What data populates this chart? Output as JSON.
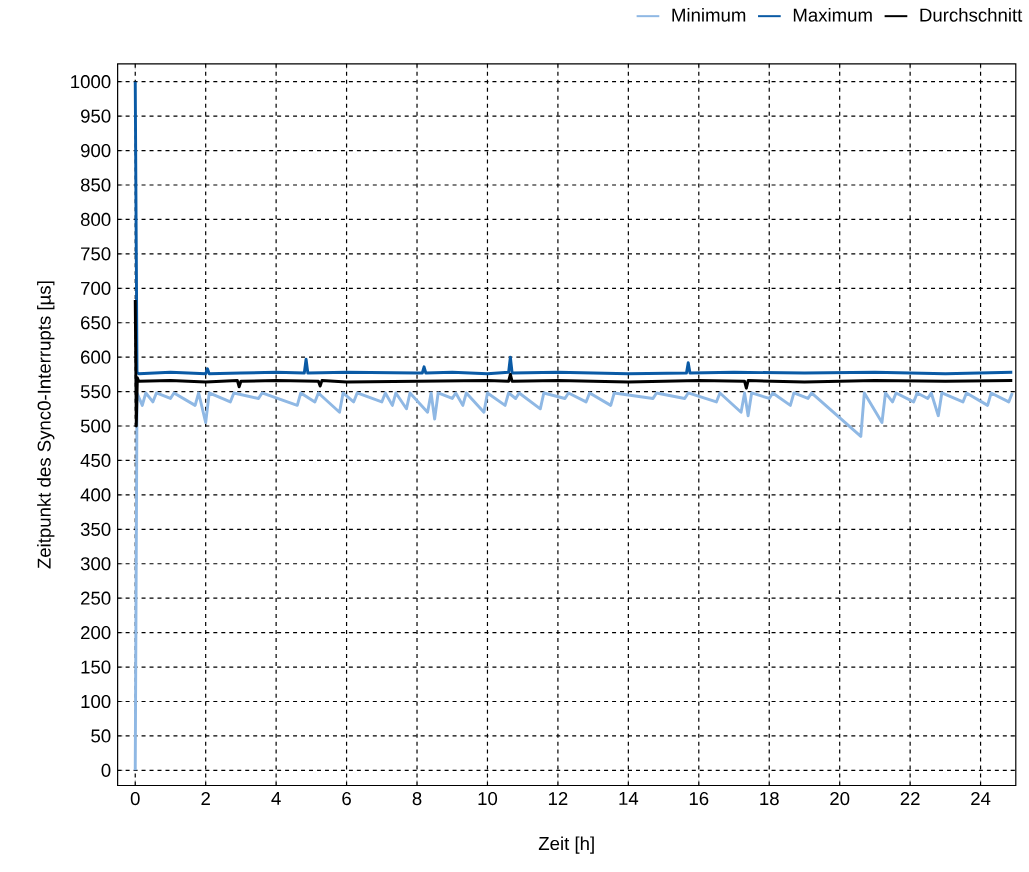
{
  "chart_data": {
    "type": "line",
    "xlabel": "Zeit [h]",
    "ylabel": "Zeitpunkt des Sync0-Interrupts [µs]",
    "xlim": [
      -0.5,
      25
    ],
    "ylim": [
      -22,
      1026
    ],
    "xticks": [
      0,
      2,
      4,
      6,
      8,
      10,
      12,
      14,
      16,
      18,
      20,
      22,
      24
    ],
    "yticks": [
      0,
      50,
      100,
      150,
      200,
      250,
      300,
      350,
      400,
      450,
      500,
      550,
      600,
      650,
      700,
      750,
      800,
      850,
      900,
      950,
      1000
    ],
    "grid": true,
    "legend": "top right",
    "series": [
      {
        "name": "Minimum",
        "color": "#8fb8e4",
        "x": [
          0,
          0.05,
          0.2,
          0.3,
          0.5,
          0.6,
          1.0,
          1.1,
          1.7,
          1.8,
          2.0,
          2.1,
          2.7,
          2.8,
          3.5,
          3.6,
          4.6,
          4.7,
          5.1,
          5.2,
          5.8,
          5.9,
          6.2,
          6.3,
          7.0,
          7.1,
          7.3,
          7.4,
          7.7,
          7.8,
          8.3,
          8.4,
          8.5,
          8.6,
          9.0,
          9.1,
          9.3,
          9.4,
          9.9,
          10.0,
          10.5,
          10.6,
          10.8,
          10.9,
          11.5,
          11.6,
          12.2,
          12.3,
          12.8,
          12.9,
          13.5,
          13.6,
          14.7,
          14.8,
          15.6,
          15.7,
          16.5,
          16.6,
          17.2,
          17.3,
          17.4,
          17.5,
          18.0,
          18.1,
          18.6,
          18.7,
          19.1,
          19.2,
          20.6,
          20.7,
          21.2,
          21.3,
          21.5,
          21.6,
          22.1,
          22.2,
          22.5,
          22.6,
          22.8,
          22.9,
          23.5,
          23.6,
          24.2,
          24.3,
          24.8,
          24.9
        ],
        "values": [
          0,
          548,
          530,
          548,
          535,
          548,
          540,
          548,
          530,
          548,
          505,
          548,
          535,
          548,
          540,
          548,
          530,
          548,
          535,
          548,
          520,
          548,
          535,
          548,
          535,
          548,
          530,
          548,
          525,
          548,
          520,
          548,
          510,
          548,
          540,
          548,
          530,
          548,
          520,
          548,
          530,
          548,
          540,
          548,
          525,
          548,
          540,
          548,
          535,
          548,
          530,
          548,
          540,
          548,
          540,
          548,
          535,
          548,
          520,
          548,
          515,
          548,
          540,
          548,
          530,
          548,
          540,
          548,
          485,
          548,
          505,
          548,
          535,
          548,
          535,
          548,
          540,
          548,
          515,
          548,
          535,
          548,
          530,
          548,
          535,
          548
        ]
      },
      {
        "name": "Maximum",
        "color": "#0a5aa5",
        "x": [
          0,
          0.05,
          0.1,
          1,
          2,
          2.05,
          2.1,
          3,
          4,
          4.8,
          4.85,
          4.9,
          6,
          8,
          8.15,
          8.2,
          8.25,
          9,
          10,
          10.6,
          10.65,
          10.7,
          12,
          14,
          15.65,
          15.7,
          15.75,
          17,
          19,
          21,
          23,
          24.9
        ],
        "values": [
          1000,
          578,
          576,
          578,
          576,
          583,
          576,
          577,
          578,
          577,
          597,
          577,
          578,
          577,
          577,
          586,
          577,
          578,
          576,
          578,
          600,
          577,
          578,
          576,
          577,
          592,
          577,
          578,
          577,
          578,
          576,
          578
        ]
      },
      {
        "name": "Durchschnitt",
        "color": "#000000",
        "x": [
          0,
          0.03,
          0.06,
          0.1,
          1,
          2,
          2.9,
          2.95,
          3,
          4,
          5.2,
          5.25,
          5.3,
          6,
          8,
          10,
          10.6,
          10.65,
          10.7,
          12,
          14,
          16,
          17.3,
          17.35,
          17.4,
          19,
          21,
          23,
          24.9
        ],
        "values": [
          683,
          500,
          570,
          565,
          566,
          564,
          566,
          557,
          565,
          566,
          565,
          558,
          566,
          564,
          565,
          566,
          565,
          575,
          565,
          566,
          564,
          566,
          565,
          555,
          566,
          564,
          566,
          565,
          566
        ]
      }
    ]
  }
}
